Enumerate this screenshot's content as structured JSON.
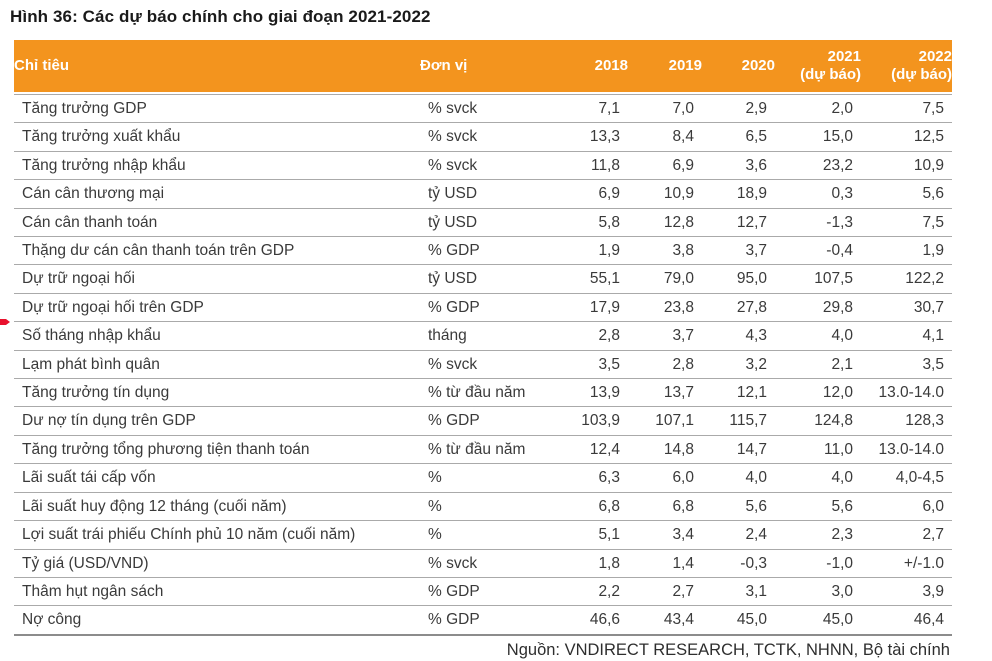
{
  "figure": {
    "title": "Hình 36: Các dự báo chính cho giai đoạn 2021-2022"
  },
  "colors": {
    "header_orange": "#F3941E",
    "header_text": "#FFFFFF",
    "body_text": "#3A3A3A",
    "row_divider": "#AAAAAA",
    "bottom_rule": "#3F3F3F",
    "marker_red": "#E8112D"
  },
  "table": {
    "columns": [
      {
        "label": "Chỉ tiêu",
        "sublabel": ""
      },
      {
        "label": "Đơn vị",
        "sublabel": ""
      },
      {
        "label": "2018",
        "sublabel": ""
      },
      {
        "label": "2019",
        "sublabel": ""
      },
      {
        "label": "2020",
        "sublabel": ""
      },
      {
        "label": "2021",
        "sublabel": "(dự báo)"
      },
      {
        "label": "2022",
        "sublabel": "(dự báo)"
      }
    ],
    "rows": [
      {
        "indicator": "Tăng trưởng GDP",
        "unit": "% svck",
        "values": [
          "7,1",
          "7,0",
          "2,9",
          "2,0",
          "7,5"
        ]
      },
      {
        "indicator": "Tăng trưởng xuất khẩu",
        "unit": "% svck",
        "values": [
          "13,3",
          "8,4",
          "6,5",
          "15,0",
          "12,5"
        ]
      },
      {
        "indicator": "Tăng trưởng nhập khẩu",
        "unit": "% svck",
        "values": [
          "11,8",
          "6,9",
          "3,6",
          "23,2",
          "10,9"
        ]
      },
      {
        "indicator": "Cán cân thương mại",
        "unit": "tỷ USD",
        "values": [
          "6,9",
          "10,9",
          "18,9",
          "0,3",
          "5,6"
        ]
      },
      {
        "indicator": "Cán cân thanh toán",
        "unit": "tỷ USD",
        "values": [
          "5,8",
          "12,8",
          "12,7",
          "-1,3",
          "7,5"
        ]
      },
      {
        "indicator": "Thặng dư cán cân thanh toán trên GDP",
        "unit": "% GDP",
        "values": [
          "1,9",
          "3,8",
          "3,7",
          "-0,4",
          "1,9"
        ]
      },
      {
        "indicator": "Dự trữ ngoại hối",
        "unit": "tỷ USD",
        "values": [
          "55,1",
          "79,0",
          "95,0",
          "107,5",
          "122,2"
        ]
      },
      {
        "indicator": "Dự trữ ngoại hối trên GDP",
        "unit": "% GDP",
        "values": [
          "17,9",
          "23,8",
          "27,8",
          "29,8",
          "30,7"
        ]
      },
      {
        "indicator": "Số tháng nhập khẩu",
        "unit": "tháng",
        "values": [
          "2,8",
          "3,7",
          "4,3",
          "4,0",
          "4,1"
        ],
        "marked": true
      },
      {
        "indicator": "Lạm phát bình quân",
        "unit": "% svck",
        "values": [
          "3,5",
          "2,8",
          "3,2",
          "2,1",
          "3,5"
        ]
      },
      {
        "indicator": "Tăng trưởng tín dụng",
        "unit": "% từ đầu năm",
        "values": [
          "13,9",
          "13,7",
          "12,1",
          "12,0",
          "13.0-14.0"
        ]
      },
      {
        "indicator": "Dư nợ tín dụng trên GDP",
        "unit": "% GDP",
        "values": [
          "103,9",
          "107,1",
          "115,7",
          "124,8",
          "128,3"
        ]
      },
      {
        "indicator": "Tăng trưởng tổng phương tiện thanh toán",
        "unit": "% từ đầu năm",
        "values": [
          "12,4",
          "14,8",
          "14,7",
          "11,0",
          "13.0-14.0"
        ]
      },
      {
        "indicator": "Lãi suất tái cấp vốn",
        "unit": "%",
        "values": [
          "6,3",
          "6,0",
          "4,0",
          "4,0",
          "4,0-4,5"
        ]
      },
      {
        "indicator": "Lãi suất huy động 12 tháng (cuối năm)",
        "unit": "%",
        "values": [
          "6,8",
          "6,8",
          "5,6",
          "5,6",
          "6,0"
        ]
      },
      {
        "indicator": "Lợi suất trái phiếu Chính phủ 10 năm (cuối năm)",
        "unit": "%",
        "values": [
          "5,1",
          "3,4",
          "2,4",
          "2,3",
          "2,7"
        ]
      },
      {
        "indicator": "Tỷ giá (USD/VND)",
        "unit": "% svck",
        "values": [
          "1,8",
          "1,4",
          "-0,3",
          "-1,0",
          "+/-1.0"
        ]
      },
      {
        "indicator": "Thâm hụt ngân sách",
        "unit": "% GDP",
        "values": [
          "2,2",
          "2,7",
          "3,1",
          "3,0",
          "3,9"
        ]
      },
      {
        "indicator": "Nợ công",
        "unit": "% GDP",
        "values": [
          "46,6",
          "43,4",
          "45,0",
          "45,0",
          "46,4"
        ]
      }
    ]
  },
  "source": {
    "text": "Nguồn: VNDIRECT RESEARCH, TCTK, NHNN, Bộ tài chính"
  }
}
